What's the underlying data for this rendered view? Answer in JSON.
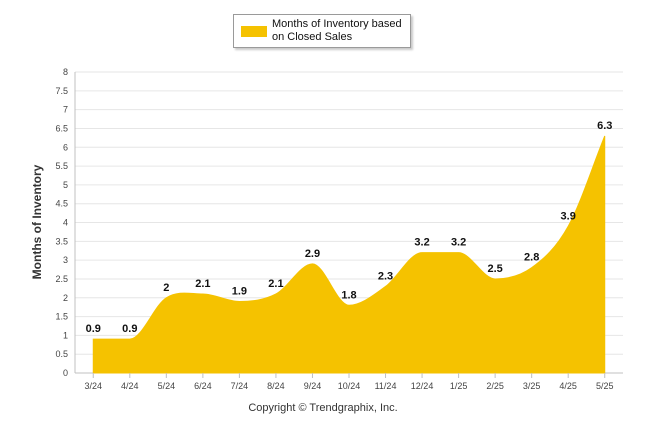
{
  "chart_data": {
    "type": "area",
    "categories": [
      "3/24",
      "4/24",
      "5/24",
      "6/24",
      "7/24",
      "8/24",
      "9/24",
      "10/24",
      "11/24",
      "12/24",
      "1/25",
      "2/25",
      "3/25",
      "4/25",
      "5/25"
    ],
    "series": [
      {
        "name": "Months of Inventory based on Closed Sales",
        "values": [
          0.9,
          0.9,
          2,
          2.1,
          1.9,
          2.1,
          2.9,
          1.8,
          2.3,
          3.2,
          3.2,
          2.5,
          2.8,
          3.9,
          6.3
        ],
        "data_labels": [
          "0.9",
          "0.9",
          "2",
          "2.1",
          "1.9",
          "2.1",
          "2.9",
          "1.8",
          "2.3",
          "3.2",
          "3.2",
          "2.5",
          "2.8",
          "3.9",
          "6.3"
        ],
        "color": "#F5C200"
      }
    ],
    "ylabel": "Months of Inventory",
    "xlabel": "",
    "ylim": [
      0,
      8
    ],
    "y_ticks": [
      "0",
      "0.5",
      "1",
      "1.5",
      "2",
      "2.5",
      "3",
      "3.5",
      "4",
      "4.5",
      "5",
      "5.5",
      "6",
      "6.5",
      "7",
      "7.5",
      "8"
    ],
    "grid": true,
    "legend": "top-center"
  },
  "legend_label": "Months of Inventory based on Closed Sales",
  "footer": "Copyright © Trendgraphix, Inc.",
  "colors": {
    "series": "#F5C200",
    "grid": "#e6e6e6",
    "axis": "#c0c0c0"
  }
}
